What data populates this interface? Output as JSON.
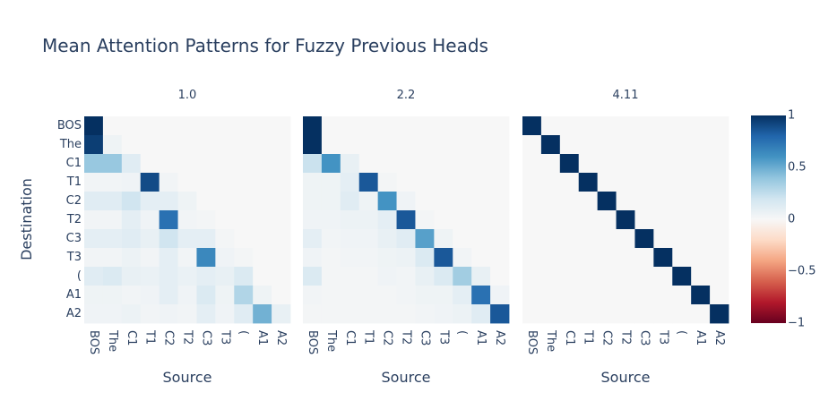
{
  "chart_data": {
    "type": "heatmap",
    "title": "Mean Attention Patterns for Fuzzy Previous Heads",
    "ylabel": "Destination",
    "tokens": [
      "BOS",
      "The",
      "C1",
      "T1",
      "C2",
      "T2",
      "C3",
      "T3",
      "(",
      "A1",
      "A2"
    ],
    "colorscale": {
      "min": -1,
      "max": 1,
      "ticks": [
        "1",
        "0.5",
        "0",
        "−0.5",
        "−1"
      ],
      "stops": [
        [
          0.0,
          "#67001f"
        ],
        [
          0.1,
          "#b2182b"
        ],
        [
          0.2,
          "#d6604d"
        ],
        [
          0.3,
          "#f4a582"
        ],
        [
          0.4,
          "#fddbc7"
        ],
        [
          0.5,
          "#f7f7f7"
        ],
        [
          0.6,
          "#d1e5f0"
        ],
        [
          0.7,
          "#92c5de"
        ],
        [
          0.8,
          "#4393c3"
        ],
        [
          0.9,
          "#2166ac"
        ],
        [
          1.0,
          "#053061"
        ]
      ]
    },
    "panels": [
      {
        "name": "1.0",
        "xlabel": "Source",
        "values": [
          [
            1.0,
            0,
            0,
            0,
            0,
            0,
            0,
            0,
            0,
            0,
            0
          ],
          [
            0.95,
            0.05,
            0,
            0,
            0,
            0,
            0,
            0,
            0,
            0,
            0
          ],
          [
            0.38,
            0.38,
            0.12,
            0,
            0,
            0,
            0,
            0,
            0,
            0,
            0
          ],
          [
            0.03,
            0.03,
            0.04,
            0.9,
            0.03,
            0,
            0,
            0,
            0,
            0,
            0
          ],
          [
            0.12,
            0.12,
            0.2,
            0.1,
            0.1,
            0.05,
            0,
            0,
            0,
            0,
            0
          ],
          [
            0.03,
            0.03,
            0.1,
            0.04,
            0.75,
            0.03,
            0.02,
            0,
            0,
            0,
            0
          ],
          [
            0.1,
            0.1,
            0.12,
            0.08,
            0.2,
            0.1,
            0.1,
            0.02,
            0,
            0,
            0
          ],
          [
            0.03,
            0.03,
            0.06,
            0.03,
            0.1,
            0.03,
            0.65,
            0.04,
            0.02,
            0,
            0
          ],
          [
            0.12,
            0.15,
            0.08,
            0.07,
            0.1,
            0.07,
            0.1,
            0.08,
            0.15,
            0,
            0
          ],
          [
            0.05,
            0.05,
            0.03,
            0.04,
            0.1,
            0.04,
            0.15,
            0.05,
            0.3,
            0.05,
            0
          ],
          [
            0.04,
            0.04,
            0.06,
            0.03,
            0.04,
            0.03,
            0.1,
            0.04,
            0.12,
            0.48,
            0.08
          ]
        ]
      },
      {
        "name": "2.2",
        "xlabel": "Source",
        "values": [
          [
            1.0,
            0,
            0,
            0,
            0,
            0,
            0,
            0,
            0,
            0,
            0
          ],
          [
            1.0,
            0,
            0,
            0,
            0,
            0,
            0,
            0,
            0,
            0,
            0
          ],
          [
            0.22,
            0.6,
            0.08,
            0,
            0,
            0,
            0,
            0,
            0,
            0,
            0
          ],
          [
            0.05,
            0.05,
            0.1,
            0.85,
            0.02,
            0,
            0,
            0,
            0,
            0,
            0
          ],
          [
            0.05,
            0.05,
            0.12,
            0.05,
            0.6,
            0.04,
            0,
            0,
            0,
            0,
            0
          ],
          [
            0.04,
            0.04,
            0.06,
            0.06,
            0.1,
            0.85,
            0.02,
            0,
            0,
            0,
            0
          ],
          [
            0.1,
            0.03,
            0.04,
            0.04,
            0.08,
            0.12,
            0.55,
            0.05,
            0,
            0,
            0
          ],
          [
            0.04,
            0.02,
            0.03,
            0.03,
            0.05,
            0.06,
            0.15,
            0.85,
            0.03,
            0,
            0
          ],
          [
            0.15,
            0.02,
            0.02,
            0.02,
            0.04,
            0.03,
            0.08,
            0.15,
            0.35,
            0.08,
            0
          ],
          [
            0.03,
            0.02,
            0.02,
            0.02,
            0.02,
            0.03,
            0.05,
            0.05,
            0.1,
            0.75,
            0.04
          ],
          [
            0.02,
            0.02,
            0.02,
            0.02,
            0.02,
            0.02,
            0.03,
            0.04,
            0.06,
            0.12,
            0.85
          ]
        ]
      },
      {
        "name": "4.11",
        "xlabel": "Source",
        "values": [
          [
            1.0,
            0,
            0,
            0,
            0,
            0,
            0,
            0,
            0,
            0,
            0
          ],
          [
            0,
            1.0,
            0,
            0,
            0,
            0,
            0,
            0,
            0,
            0,
            0
          ],
          [
            0,
            0,
            1.0,
            0,
            0,
            0,
            0,
            0,
            0,
            0,
            0
          ],
          [
            0,
            0,
            0,
            1.0,
            0,
            0,
            0,
            0,
            0,
            0,
            0
          ],
          [
            0,
            0,
            0,
            0,
            1.0,
            0,
            0,
            0,
            0,
            0,
            0
          ],
          [
            0,
            0,
            0,
            0,
            0,
            1.0,
            0,
            0,
            0,
            0,
            0
          ],
          [
            0,
            0,
            0,
            0,
            0,
            0,
            1.0,
            0,
            0,
            0,
            0
          ],
          [
            0,
            0,
            0,
            0,
            0,
            0,
            0,
            1.0,
            0,
            0,
            0
          ],
          [
            0,
            0,
            0,
            0,
            0,
            0,
            0,
            0,
            1.0,
            0,
            0
          ],
          [
            0,
            0,
            0,
            0,
            0,
            0,
            0,
            0,
            0,
            1.0,
            0
          ],
          [
            0,
            0,
            0,
            0,
            0,
            0,
            0,
            0,
            0,
            0,
            1.0
          ]
        ]
      }
    ]
  }
}
